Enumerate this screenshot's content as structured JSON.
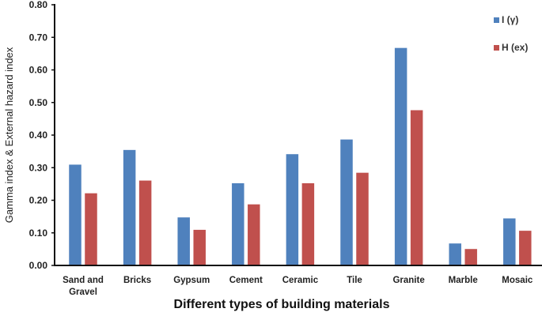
{
  "chart_data": {
    "type": "bar",
    "title": "",
    "xlabel": "Different types of building materials",
    "ylabel": "Gamma index & External hazard index",
    "ylim": [
      0,
      0.8
    ],
    "yticks": [
      "0.00",
      "0.10",
      "0.20",
      "0.30",
      "0.40",
      "0.50",
      "0.60",
      "0.70",
      "0.80"
    ],
    "grid": false,
    "legend_position": "top-right",
    "categories": [
      "Sand and Gravel",
      "Bricks",
      "Gypsum",
      "Cement",
      "Ceramic",
      "Tile",
      "Granite",
      "Marble",
      "Mosaic"
    ],
    "category_lines": [
      [
        "Sand and",
        "Gravel"
      ],
      [
        "Bricks"
      ],
      [
        "Gypsum"
      ],
      [
        "Cement"
      ],
      [
        "Ceramic"
      ],
      [
        "Tile"
      ],
      [
        "Granite"
      ],
      [
        "Marble"
      ],
      [
        "Mosaic"
      ]
    ],
    "series": [
      {
        "name": "I (γ)",
        "color": "#4f81bd",
        "values": [
          0.31,
          0.355,
          0.148,
          0.253,
          0.342,
          0.387,
          0.668,
          0.068,
          0.145
        ]
      },
      {
        "name": "H (ex)",
        "color": "#c0504d",
        "values": [
          0.222,
          0.261,
          0.11,
          0.188,
          0.253,
          0.285,
          0.477,
          0.051,
          0.107
        ]
      }
    ]
  }
}
